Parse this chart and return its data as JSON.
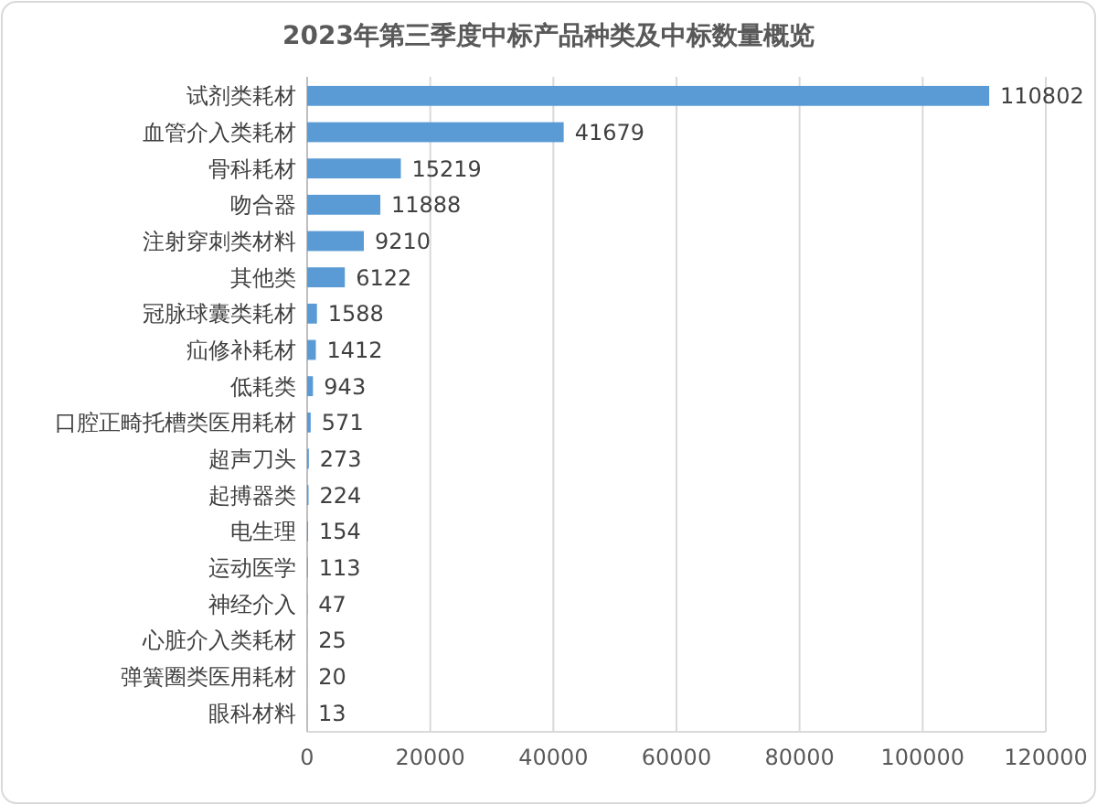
{
  "chart_data": {
    "type": "bar",
    "orientation": "horizontal",
    "title": "2023年第三季度中标产品种类及中标数量概览",
    "categories": [
      "试剂类耗材",
      "血管介入类耗材",
      "骨科耗材",
      "吻合器",
      "注射穿刺类材料",
      "其他类",
      "冠脉球囊类耗材",
      "疝修补耗材",
      "低耗类",
      "口腔正畸托槽类医用耗材",
      "超声刀头",
      "起搏器类",
      "电生理",
      "运动医学",
      "神经介入",
      "心脏介入类耗材",
      "弹簧圈类医用耗材",
      "眼科材料"
    ],
    "values": [
      110802,
      41679,
      15219,
      11888,
      9210,
      6122,
      1588,
      1412,
      943,
      571,
      273,
      224,
      154,
      113,
      47,
      25,
      20,
      13
    ],
    "color": "#5b9bd5",
    "xlim": [
      0,
      120000
    ],
    "xticks": [
      0,
      20000,
      40000,
      60000,
      80000,
      100000,
      120000
    ],
    "grid": "x",
    "data_labels": true
  }
}
